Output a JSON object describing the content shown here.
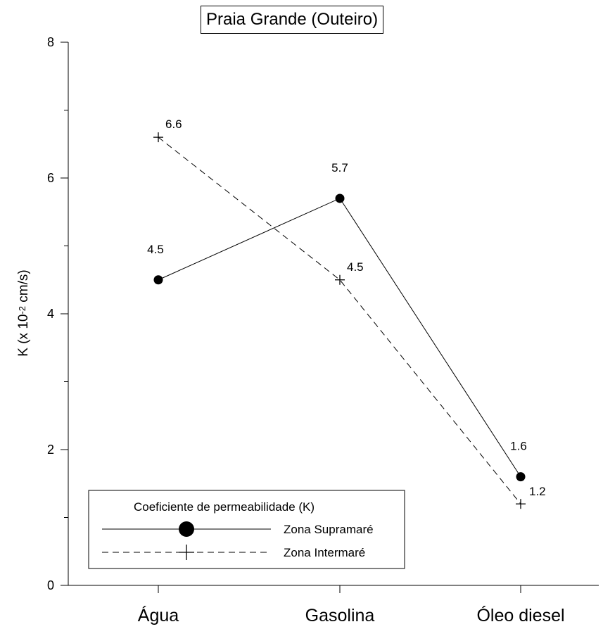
{
  "chart_data": {
    "type": "line",
    "title": "Praia Grande (Outeiro)",
    "ylabel": {
      "prefix": "K (x 10",
      "exponent": "-2",
      "suffix": " cm/s)"
    },
    "xlabel": "",
    "categories": [
      "Água",
      "Gasolina",
      "Óleo diesel"
    ],
    "ylim": [
      0,
      8
    ],
    "yticks": [
      0,
      2,
      4,
      6,
      8
    ],
    "yticks_minor": [
      1,
      3,
      5,
      7
    ],
    "series": [
      {
        "name": "Zona Supramaré",
        "values": [
          4.5,
          5.7,
          1.6
        ],
        "labels": [
          "4.5",
          "5.7",
          "1.6"
        ],
        "marker": "circle",
        "line": "solid",
        "color": "#000000"
      },
      {
        "name": "Zona Intermaré",
        "values": [
          6.6,
          4.5,
          1.2
        ],
        "labels": [
          "6.6",
          "4.5",
          "1.2"
        ],
        "marker": "plus",
        "line": "dashed",
        "color": "#000000"
      }
    ],
    "legend": {
      "title": "Coeficiente de permeabilidade (K)",
      "position": "bottom-left"
    },
    "grid": false
  }
}
